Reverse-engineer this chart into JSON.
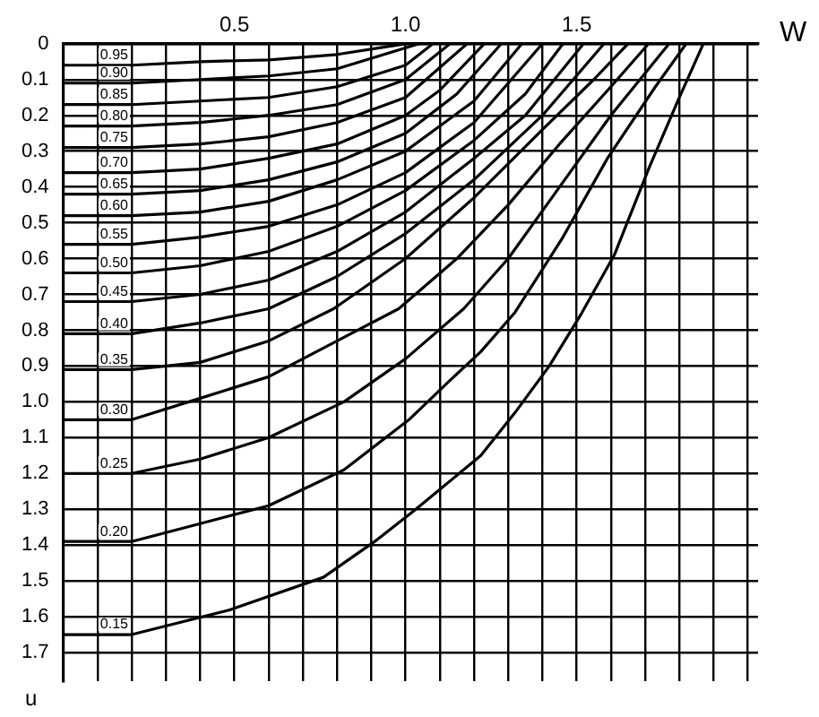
{
  "chart_data": {
    "type": "line",
    "xlabel": "W",
    "ylabel": "u",
    "xlim": [
      0,
      2.03
    ],
    "ylim": [
      1.78,
      0
    ],
    "xticks": [
      {
        "value": 0.1,
        "label": null
      },
      {
        "value": 0.2,
        "label": null
      },
      {
        "value": 0.3,
        "label": null
      },
      {
        "value": 0.4,
        "label": null
      },
      {
        "value": 0.5,
        "label": "0.5"
      },
      {
        "value": 0.6,
        "label": null
      },
      {
        "value": 0.7,
        "label": null
      },
      {
        "value": 0.8,
        "label": null
      },
      {
        "value": 0.9,
        "label": null
      },
      {
        "value": 1,
        "label": "1.0"
      },
      {
        "value": 1.1,
        "label": null
      },
      {
        "value": 1.2,
        "label": null
      },
      {
        "value": 1.3,
        "label": null
      },
      {
        "value": 1.4,
        "label": null
      },
      {
        "value": 1.5,
        "label": "1.5"
      },
      {
        "value": 1.6,
        "label": null
      },
      {
        "value": 1.7,
        "label": null
      },
      {
        "value": 1.8,
        "label": null
      },
      {
        "value": 1.9,
        "label": null
      },
      {
        "value": 2.0,
        "label": null
      }
    ],
    "yticks": [
      0,
      0.1,
      0.2,
      0.3,
      0.4,
      0.5,
      0.6,
      0.7,
      0.8,
      0.9,
      {
        "value": 1,
        "label": "1.0"
      },
      1.1,
      1.2,
      1.3,
      1.4,
      1.5,
      1.6,
      1.7
    ],
    "grid": true,
    "legend": false,
    "marker": "none",
    "line_style": "solid",
    "series": [
      {
        "name": "0.95",
        "color": "#000000",
        "x": [
          0,
          0.2,
          0.4,
          0.6,
          0.8,
          1.0
        ],
        "values": [
          0.06,
          0.06,
          0.05,
          0.045,
          0.03,
          0
        ]
      },
      {
        "name": "0.90",
        "color": "#000000",
        "x": [
          0,
          0.2,
          0.4,
          0.6,
          0.8,
          1.04
        ],
        "values": [
          0.11,
          0.11,
          0.1,
          0.09,
          0.07,
          0
        ]
      },
      {
        "name": "0.85",
        "color": "#000000",
        "x": [
          0,
          0.2,
          0.4,
          0.6,
          0.8,
          1.0,
          1.08
        ],
        "values": [
          0.17,
          0.17,
          0.16,
          0.15,
          0.12,
          0.06,
          0
        ]
      },
      {
        "name": "0.80",
        "color": "#000000",
        "x": [
          0,
          0.2,
          0.4,
          0.6,
          0.8,
          1.0,
          1.13
        ],
        "values": [
          0.23,
          0.23,
          0.22,
          0.2,
          0.17,
          0.1,
          0
        ]
      },
      {
        "name": "0.75",
        "color": "#000000",
        "x": [
          0,
          0.2,
          0.4,
          0.6,
          0.8,
          1.0,
          1.18
        ],
        "values": [
          0.29,
          0.29,
          0.28,
          0.26,
          0.22,
          0.15,
          0
        ]
      },
      {
        "name": "0.70",
        "color": "#000000",
        "x": [
          0,
          0.2,
          0.4,
          0.6,
          0.8,
          1.0,
          1.1,
          1.23
        ],
        "values": [
          0.36,
          0.36,
          0.35,
          0.32,
          0.28,
          0.2,
          0.13,
          0
        ]
      },
      {
        "name": "0.65",
        "color": "#000000",
        "x": [
          0,
          0.2,
          0.4,
          0.6,
          0.8,
          1.0,
          1.15,
          1.28
        ],
        "values": [
          0.42,
          0.42,
          0.41,
          0.38,
          0.33,
          0.25,
          0.14,
          0
        ]
      },
      {
        "name": "0.60",
        "color": "#000000",
        "x": [
          0,
          0.2,
          0.4,
          0.6,
          0.8,
          1.0,
          1.2,
          1.34
        ],
        "values": [
          0.48,
          0.48,
          0.47,
          0.44,
          0.38,
          0.3,
          0.16,
          0
        ]
      },
      {
        "name": "0.55",
        "color": "#000000",
        "x": [
          0,
          0.2,
          0.4,
          0.6,
          0.8,
          1.0,
          1.2,
          1.4
        ],
        "values": [
          0.56,
          0.56,
          0.54,
          0.51,
          0.45,
          0.36,
          0.22,
          0
        ]
      },
      {
        "name": "0.50",
        "color": "#000000",
        "x": [
          0,
          0.2,
          0.4,
          0.6,
          0.8,
          1.0,
          1.2,
          1.35,
          1.46
        ],
        "values": [
          0.64,
          0.64,
          0.62,
          0.58,
          0.51,
          0.41,
          0.27,
          0.14,
          0
        ]
      },
      {
        "name": "0.45",
        "color": "#000000",
        "x": [
          0,
          0.2,
          0.4,
          0.6,
          0.8,
          1.0,
          1.2,
          1.35,
          1.52
        ],
        "values": [
          0.72,
          0.72,
          0.7,
          0.66,
          0.58,
          0.47,
          0.32,
          0.2,
          0
        ]
      },
      {
        "name": "0.40",
        "color": "#000000",
        "x": [
          0,
          0.2,
          0.4,
          0.6,
          0.8,
          1.0,
          1.2,
          1.4,
          1.58
        ],
        "values": [
          0.81,
          0.81,
          0.78,
          0.74,
          0.65,
          0.53,
          0.38,
          0.2,
          0
        ]
      },
      {
        "name": "0.35",
        "color": "#000000",
        "x": [
          0,
          0.2,
          0.4,
          0.6,
          0.79,
          1.0,
          1.2,
          1.4,
          1.55,
          1.65
        ],
        "values": [
          0.91,
          0.91,
          0.89,
          0.83,
          0.74,
          0.6,
          0.43,
          0.24,
          0.1,
          0
        ]
      },
      {
        "name": "0.30",
        "color": "#000000",
        "x": [
          0,
          0.2,
          0.4,
          0.6,
          0.82,
          0.98,
          1.15,
          1.3,
          1.45,
          1.6,
          1.71
        ],
        "values": [
          1.05,
          1.05,
          0.99,
          0.93,
          0.82,
          0.74,
          0.6,
          0.45,
          0.28,
          0.12,
          0
        ]
      },
      {
        "name": "0.25",
        "color": "#000000",
        "x": [
          0,
          0.2,
          0.4,
          0.6,
          0.82,
          1.0,
          1.17,
          1.3,
          1.45,
          1.6,
          1.77
        ],
        "values": [
          1.2,
          1.2,
          1.16,
          1.1,
          1.0,
          0.88,
          0.74,
          0.6,
          0.4,
          0.2,
          0
        ]
      },
      {
        "name": "0.20",
        "color": "#000000",
        "x": [
          0,
          0.2,
          0.4,
          0.6,
          0.82,
          1.01,
          1.13,
          1.22,
          1.32,
          1.46,
          1.59,
          1.73,
          1.82
        ],
        "values": [
          1.39,
          1.39,
          1.34,
          1.29,
          1.19,
          1.05,
          0.94,
          0.86,
          0.75,
          0.54,
          0.32,
          0.12,
          0
        ]
      },
      {
        "name": "0.15",
        "color": "#000000",
        "x": [
          0,
          0.2,
          0.49,
          0.76,
          0.91,
          1.03,
          1.22,
          1.32,
          1.42,
          1.51,
          1.61,
          1.71,
          1.8,
          1.87
        ],
        "values": [
          1.65,
          1.65,
          1.58,
          1.49,
          1.39,
          1.3,
          1.15,
          1.03,
          0.9,
          0.76,
          0.59,
          0.35,
          0.15,
          0
        ]
      }
    ]
  }
}
